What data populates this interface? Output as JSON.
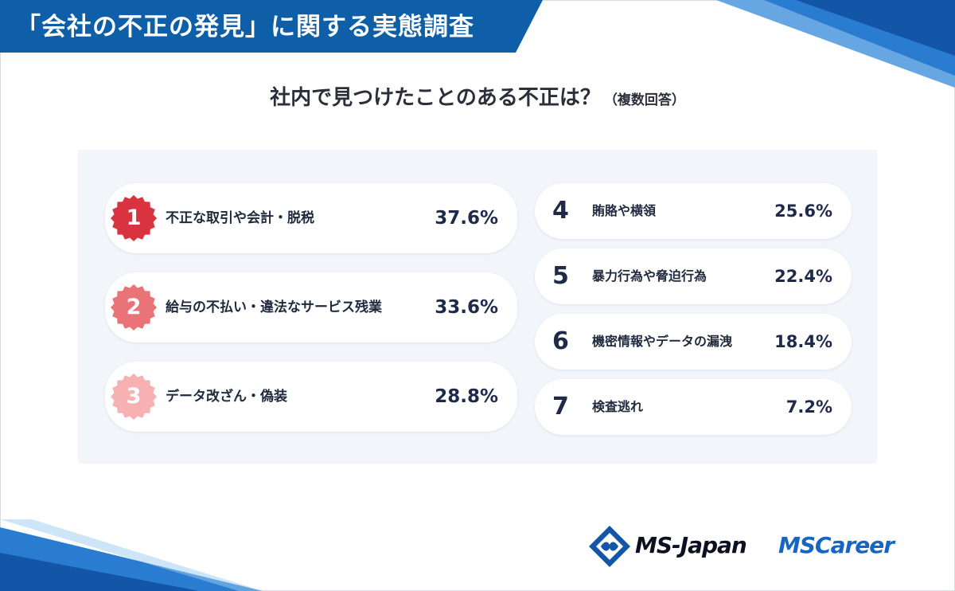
{
  "header": {
    "title": "「会社の不正の発見」に関する実態調査",
    "color": "#0f5fa8"
  },
  "subtitle": {
    "main": "社内で見つけたことのある不正は？",
    "note": "（複数回答）"
  },
  "chart_data": {
    "type": "table",
    "title": "社内で見つけたことのある不正は？",
    "subtitle": "（複数回答）",
    "unit": "%",
    "rows": [
      {
        "rank": "1",
        "label": "不正な取引や会計・脱税",
        "value": 37.6,
        "display": "37.6%",
        "badge_color": "#d8333f"
      },
      {
        "rank": "2",
        "label": "給与の不払い・違法なサービス残業",
        "value": 33.6,
        "display": "33.6%",
        "badge_color": "#ea7377"
      },
      {
        "rank": "3",
        "label": "データ改ざん・偽装",
        "value": 28.8,
        "display": "28.8%",
        "badge_color": "#f7b1b3"
      },
      {
        "rank": "4",
        "label": "賄賂や横領",
        "value": 25.6,
        "display": "25.6%"
      },
      {
        "rank": "5",
        "label": "暴力行為や脅迫行為",
        "value": 22.4,
        "display": "22.4%"
      },
      {
        "rank": "6",
        "label": "機密情報やデータの漏洩",
        "value": 18.4,
        "display": "18.4%"
      },
      {
        "rank": "7",
        "label": "検査逃れ",
        "value": 7.2,
        "display": "7.2%"
      }
    ]
  },
  "logos": {
    "msjapan": "MS-Japan",
    "mscareer": "MSCareer",
    "mark_icon": "ms-japan-diamond-logo"
  }
}
